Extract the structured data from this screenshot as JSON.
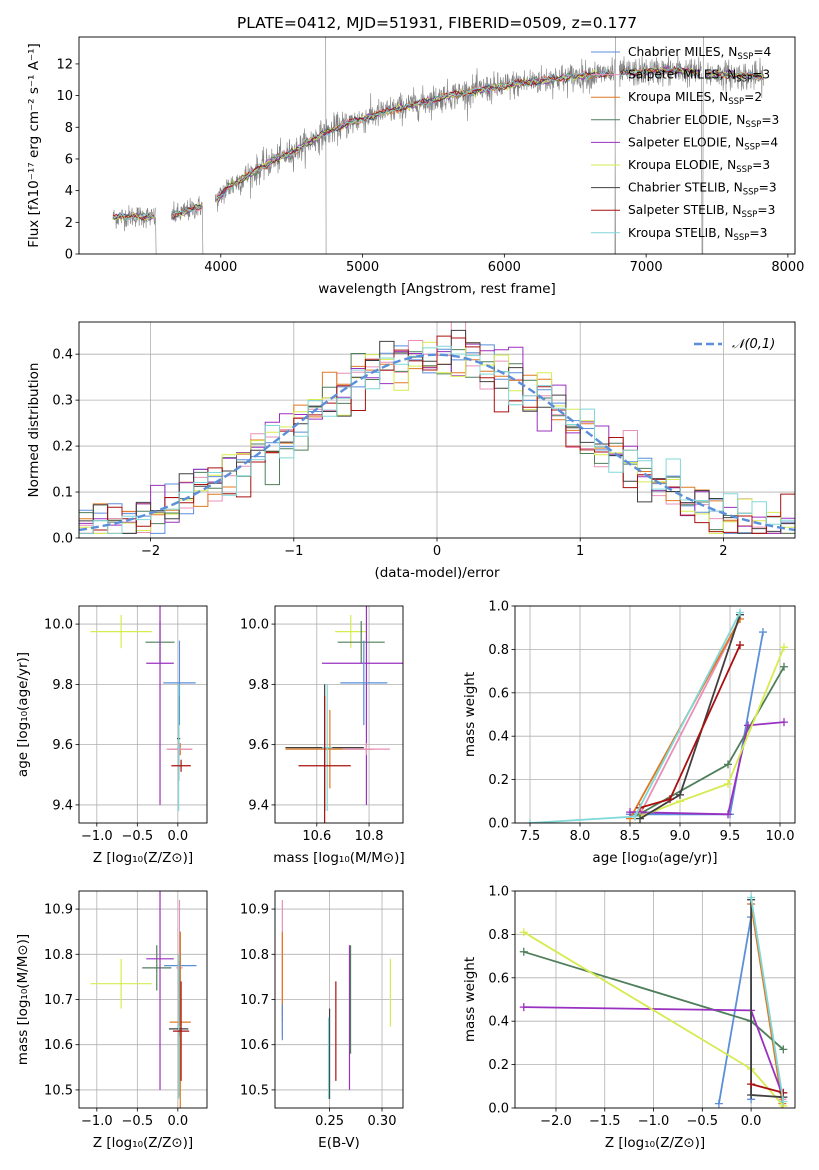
{
  "figure": {
    "title": "PLATE=0412, MJD=51931, FIBERID=0509, z=0.177",
    "colors": {
      "Chabrier MILES": "#5b8fd9",
      "Salpeter MILES": "#e890b8",
      "Kroupa MILES": "#e07820",
      "Chabrier ELODIE": "#4f7f5a",
      "Salpeter ELODIE": "#9a30c0",
      "Kroupa ELODIE": "#d6eb4f",
      "Chabrier STELIB": "#404040",
      "Salpeter STELIB": "#aa1010",
      "Kroupa STELIB": "#80d8d8",
      "data": "#808080",
      "gaussian": "#5b8fd9",
      "grid": "#b0b0b0"
    }
  },
  "chart_data": [
    {
      "type": "line",
      "id": "spectrum",
      "xlabel": "wavelength [Angstrom, rest frame]",
      "ylabel": "Flux [fλ10⁻¹⁷ erg cm⁻² s⁻¹ A⁻¹]",
      "xlim": [
        3000,
        8050
      ],
      "ylim": [
        0,
        13.7
      ],
      "xticks": [
        4000,
        5000,
        6000,
        7000,
        8000
      ],
      "yticks": [
        0,
        2,
        4,
        6,
        8,
        10,
        12
      ],
      "grid": false,
      "legend": "upper right",
      "legend_entries": [
        {
          "model": "Chabrier MILES",
          "label": "Chabrier MILES, N",
          "sub": "SSP",
          "tail": "=4"
        },
        {
          "model": "Salpeter MILES",
          "label": "Salpeter MILES, N",
          "sub": "SSP",
          "tail": "=3"
        },
        {
          "model": "Kroupa MILES",
          "label": "Kroupa MILES, N",
          "sub": "SSP",
          "tail": "=2"
        },
        {
          "model": "Chabrier ELODIE",
          "label": "Chabrier ELODIE, N",
          "sub": "SSP",
          "tail": "=3"
        },
        {
          "model": "Salpeter ELODIE",
          "label": "Salpeter ELODIE, N",
          "sub": "SSP",
          "tail": "=4"
        },
        {
          "model": "Kroupa ELODIE",
          "label": "Kroupa ELODIE, N",
          "sub": "SSP",
          "tail": "=3"
        },
        {
          "model": "Chabrier STELIB",
          "label": "Chabrier STELIB, N",
          "sub": "SSP",
          "tail": "=3"
        },
        {
          "model": "Salpeter STELIB",
          "label": "Salpeter STELIB, N",
          "sub": "SSP",
          "tail": "=3"
        },
        {
          "model": "Kroupa STELIB",
          "label": "Kroupa STELIB, N",
          "sub": "SSP",
          "tail": "=3"
        }
      ],
      "continuum": {
        "wavelength": [
          3240,
          3400,
          3550,
          3700,
          3850,
          3950,
          4050,
          4200,
          4350,
          4500,
          4650,
          4800,
          4950,
          5100,
          5250,
          5400,
          5600,
          5800,
          6000,
          6200,
          6400,
          6600,
          6800,
          7000,
          7200,
          7400,
          7600,
          7800
        ],
        "flux": [
          2.3,
          2.4,
          2.3,
          2.5,
          3.0,
          3.2,
          4.2,
          5.0,
          5.8,
          6.4,
          7.2,
          7.9,
          8.4,
          8.8,
          9.2,
          9.5,
          10.0,
          10.3,
          10.6,
          10.9,
          11.1,
          11.3,
          11.4,
          11.5,
          11.6,
          11.4,
          11.3,
          11.2
        ]
      },
      "gaps": [
        [
          3540,
          3650
        ],
        [
          3870,
          3960
        ],
        [
          6780,
          6810
        ],
        [
          7390,
          7420
        ]
      ]
    },
    {
      "type": "bar",
      "id": "residuals",
      "xlabel": "(data-model)/error",
      "ylabel": "Normed distribution",
      "xlim": [
        -2.5,
        2.5
      ],
      "ylim": [
        0,
        0.47
      ],
      "xticks": [
        -2,
        -1,
        0,
        1,
        2
      ],
      "yticks": [
        0,
        0.1,
        0.2,
        0.3,
        0.4
      ],
      "grid": true,
      "legend": "upper right",
      "gaussian_label": "𝒩(0,1)",
      "bins": 50
    },
    {
      "type": "scatter",
      "id": "age_vs_Z",
      "xlabel": "Z [log₁₀(Z/Z⊙)]",
      "ylabel": "age  [log₁₀(age/yr)]",
      "xlim": [
        -1.22,
        0.36
      ],
      "ylim": [
        9.34,
        10.06
      ],
      "xticks": [
        -1.0,
        -0.5,
        0.0
      ],
      "yticks": [
        9.4,
        9.6,
        9.8,
        10.0
      ],
      "grid": true,
      "errorbars": [
        {
          "model": "Kroupa ELODIE",
          "x": -0.7,
          "y": 9.975,
          "x_err": 0.38,
          "y_err": 0.055
        },
        {
          "model": "Chabrier ELODIE",
          "x": -0.22,
          "y": 9.94,
          "x_err": 0.18,
          "y_err": 0.07
        },
        {
          "model": "Salpeter ELODIE",
          "x": -0.22,
          "y": 9.87,
          "x_err": 0.17,
          "y_err": 0.47
        },
        {
          "model": "Chabrier MILES",
          "x": 0.02,
          "y": 9.805,
          "x_err": 0.2,
          "y_err": 0.14
        },
        {
          "model": "Chabrier STELIB",
          "x": 0.01,
          "y": 9.62,
          "x_err": 0.02,
          "y_err": 0.14
        },
        {
          "model": "Kroupa MILES",
          "x": 0.03,
          "y": 9.585,
          "x_err": 0.14,
          "y_err": 0.02
        },
        {
          "model": "Salpeter MILES",
          "x": 0.02,
          "y": 9.585,
          "x_err": 0.16,
          "y_err": 0.02
        },
        {
          "model": "Kroupa STELIB",
          "x": 0.01,
          "y": 9.59,
          "x_err": 0.02,
          "y_err": 0.21
        },
        {
          "model": "Salpeter STELIB",
          "x": 0.04,
          "y": 9.53,
          "x_err": 0.12,
          "y_err": 0.02
        }
      ]
    },
    {
      "type": "scatter",
      "id": "age_vs_mass",
      "xlabel": "mass [log₁₀(M/M⊙)]",
      "ylabel": "",
      "xlim": [
        10.44,
        10.93
      ],
      "ylim": [
        9.34,
        10.06
      ],
      "xticks": [
        10.6,
        10.8
      ],
      "yticks": [
        9.4,
        9.6,
        9.8,
        10.0
      ],
      "grid": true,
      "errorbars": [
        {
          "model": "Kroupa ELODIE",
          "x": 10.73,
          "y": 9.975,
          "x_err": 0.06,
          "y_err": 0.055
        },
        {
          "model": "Chabrier ELODIE",
          "x": 10.77,
          "y": 9.94,
          "x_err": 0.09,
          "y_err": 0.07
        },
        {
          "model": "Salpeter ELODIE",
          "x": 10.79,
          "y": 9.87,
          "x_err": 0.17,
          "y_err": 0.47
        },
        {
          "model": "Chabrier MILES",
          "x": 10.78,
          "y": 9.805,
          "x_err": 0.09,
          "y_err": 0.14
        },
        {
          "model": "Kroupa MILES",
          "x": 10.65,
          "y": 9.585,
          "x_err": 0.17,
          "y_err": 0.13
        },
        {
          "model": "Salpeter MILES",
          "x": 10.79,
          "y": 9.585,
          "x_err": 0.09,
          "y_err": 0.02
        },
        {
          "model": "Chabrier STELIB",
          "x": 10.63,
          "y": 9.59,
          "x_err": 0.15,
          "y_err": 0.21
        },
        {
          "model": "Kroupa STELIB",
          "x": 10.64,
          "y": 9.59,
          "x_err": 0.02,
          "y_err": 0.21
        },
        {
          "model": "Salpeter STELIB",
          "x": 10.63,
          "y": 9.53,
          "x_err": 0.1,
          "y_err": 0.23
        }
      ]
    },
    {
      "type": "line",
      "id": "mass_weight_vs_age",
      "xlabel": "age  [log₁₀(age/yr)]",
      "ylabel": "mass weight",
      "xlim": [
        7.35,
        10.15
      ],
      "ylim": [
        0,
        1.0
      ],
      "xticks": [
        7.5,
        8.0,
        8.5,
        9.0,
        9.5,
        10.0
      ],
      "yticks": [
        0.0,
        0.2,
        0.4,
        0.6,
        0.8,
        1.0
      ],
      "grid": true,
      "series": [
        {
          "model": "Chabrier MILES",
          "x": [
            8.5,
            9.5,
            9.83
          ],
          "y": [
            0.04,
            0.04,
            0.88
          ]
        },
        {
          "model": "Salpeter MILES",
          "x": [
            8.6,
            9.6
          ],
          "y": [
            0.04,
            0.94
          ]
        },
        {
          "model": "Kroupa MILES",
          "x": [
            8.5,
            9.6
          ],
          "y": [
            0.02,
            0.94
          ]
        },
        {
          "model": "Chabrier ELODIE",
          "x": [
            8.55,
            9.48,
            10.04
          ],
          "y": [
            0.03,
            0.27,
            0.72
          ]
        },
        {
          "model": "Salpeter ELODIE",
          "x": [
            8.5,
            9.48,
            9.68,
            10.04
          ],
          "y": [
            0.05,
            0.04,
            0.45,
            0.465
          ]
        },
        {
          "model": "Kroupa ELODIE",
          "x": [
            8.6,
            9.0,
            9.48,
            10.04
          ],
          "y": [
            0.03,
            0.1,
            0.18,
            0.81
          ]
        },
        {
          "model": "Chabrier STELIB",
          "x": [
            8.6,
            9.0,
            9.6
          ],
          "y": [
            0.02,
            0.13,
            0.96
          ]
        },
        {
          "model": "Salpeter STELIB",
          "x": [
            8.6,
            8.9,
            9.6
          ],
          "y": [
            0.07,
            0.11,
            0.82
          ]
        },
        {
          "model": "Kroupa STELIB",
          "x": [
            7.5,
            8.55,
            9.6
          ],
          "y": [
            0.0,
            0.03,
            0.97
          ]
        }
      ]
    },
    {
      "type": "scatter",
      "id": "mass_vs_Z",
      "xlabel": "Z [log₁₀(Z/Z⊙)]",
      "ylabel": "mass [log₁₀(M/M⊙)]",
      "xlim": [
        -1.22,
        0.36
      ],
      "ylim": [
        10.46,
        10.94
      ],
      "xticks": [
        -1.0,
        -0.5,
        0.0
      ],
      "yticks": [
        10.5,
        10.6,
        10.7,
        10.8,
        10.9
      ],
      "grid": true,
      "errorbars": [
        {
          "model": "Kroupa ELODIE",
          "x": -0.7,
          "y": 10.735,
          "x_err": 0.38,
          "y_err": 0.055
        },
        {
          "model": "Chabrier ELODIE",
          "x": -0.26,
          "y": 10.77,
          "x_err": 0.18,
          "y_err": 0.05
        },
        {
          "model": "Salpeter ELODIE",
          "x": -0.22,
          "y": 10.79,
          "x_err": 0.17,
          "y_err": 0.29
        },
        {
          "model": "Chabrier MILES",
          "x": 0.03,
          "y": 10.775,
          "x_err": 0.2,
          "y_err": 0.075
        },
        {
          "model": "Salpeter MILES",
          "x": 0.02,
          "y": 10.77,
          "x_err": 0.04,
          "y_err": 0.15
        },
        {
          "model": "Kroupa MILES",
          "x": 0.03,
          "y": 10.65,
          "x_err": 0.13,
          "y_err": 0.2
        },
        {
          "model": "Chabrier STELIB",
          "x": 0.01,
          "y": 10.635,
          "x_err": 0.12,
          "y_err": 0.15
        },
        {
          "model": "Kroupa STELIB",
          "x": 0.01,
          "y": 10.64,
          "x_err": 0.02,
          "y_err": 0.16
        },
        {
          "model": "Salpeter STELIB",
          "x": 0.04,
          "y": 10.63,
          "x_err": 0.1,
          "y_err": 0.11
        }
      ]
    },
    {
      "type": "scatter",
      "id": "mass_vs_EBV",
      "xlabel": "E(B-V)",
      "ylabel": "",
      "xlim": [
        0.198,
        0.32
      ],
      "ylim": [
        10.46,
        10.94
      ],
      "xticks": [
        0.25,
        0.3
      ],
      "yticks": [
        10.5,
        10.6,
        10.7,
        10.8,
        10.9
      ],
      "grid": true,
      "errorbars": [
        {
          "model": "Salpeter MILES",
          "x": 0.205,
          "y": 10.77,
          "x_err": 0.0,
          "y_err": 0.15
        },
        {
          "model": "Kroupa MILES",
          "x": 0.205,
          "y": 10.75,
          "x_err": 0.0,
          "y_err": 0.1
        },
        {
          "model": "Chabrier MILES",
          "x": 0.205,
          "y": 10.65,
          "x_err": 0.0,
          "y_err": 0.04
        },
        {
          "model": "Chabrier STELIB",
          "x": 0.25,
          "y": 10.58,
          "x_err": 0.0,
          "y_err": 0.1
        },
        {
          "model": "Kroupa STELIB",
          "x": 0.249,
          "y": 10.57,
          "x_err": 0.0,
          "y_err": 0.09
        },
        {
          "model": "Salpeter STELIB",
          "x": 0.256,
          "y": 10.63,
          "x_err": 0.0,
          "y_err": 0.11
        },
        {
          "model": "Salpeter ELODIE",
          "x": 0.269,
          "y": 10.66,
          "x_err": 0.0,
          "y_err": 0.16
        },
        {
          "model": "Chabrier ELODIE",
          "x": 0.27,
          "y": 10.7,
          "x_err": 0.0,
          "y_err": 0.12
        },
        {
          "model": "Kroupa ELODIE",
          "x": 0.308,
          "y": 10.715,
          "x_err": 0.0,
          "y_err": 0.075
        }
      ]
    },
    {
      "type": "line",
      "id": "mass_weight_vs_Z",
      "xlabel": "Z [log₁₀(Z/Z⊙)]",
      "ylabel": "mass weight",
      "xlim": [
        -2.42,
        0.45
      ],
      "ylim": [
        0,
        1.0
      ],
      "xticks": [
        -2.0,
        -1.5,
        -1.0,
        -0.5,
        0.0
      ],
      "yticks": [
        0.0,
        0.2,
        0.4,
        0.6,
        0.8,
        1.0
      ],
      "grid": true,
      "series": [
        {
          "model": "Chabrier MILES",
          "x": [
            -0.33,
            0.0,
            0.0
          ],
          "y": [
            0.02,
            0.88,
            0.04
          ]
        },
        {
          "model": "Salpeter MILES",
          "x": [
            0.0,
            0.32
          ],
          "y": [
            0.94,
            0.04
          ]
        },
        {
          "model": "Kroupa MILES",
          "x": [
            0.0,
            0.32
          ],
          "y": [
            0.94,
            0.02
          ]
        },
        {
          "model": "Chabrier ELODIE",
          "x": [
            -2.33,
            0.0,
            0.33
          ],
          "y": [
            0.72,
            0.4,
            0.27
          ]
        },
        {
          "model": "Salpeter ELODIE",
          "x": [
            -2.33,
            0.0,
            0.33
          ],
          "y": [
            0.465,
            0.45,
            0.05
          ]
        },
        {
          "model": "Kroupa ELODIE",
          "x": [
            -2.33,
            0.0,
            0.33
          ],
          "y": [
            0.81,
            0.18,
            0.01
          ]
        },
        {
          "model": "Chabrier STELIB",
          "x": [
            0.0,
            0.0,
            0.33
          ],
          "y": [
            0.96,
            0.06,
            0.05
          ]
        },
        {
          "model": "Salpeter STELIB",
          "x": [
            0.0,
            0.33
          ],
          "y": [
            0.11,
            0.07
          ]
        },
        {
          "model": "Kroupa STELIB",
          "x": [
            0.0,
            0.33
          ],
          "y": [
            0.97,
            0.03
          ]
        }
      ]
    }
  ]
}
